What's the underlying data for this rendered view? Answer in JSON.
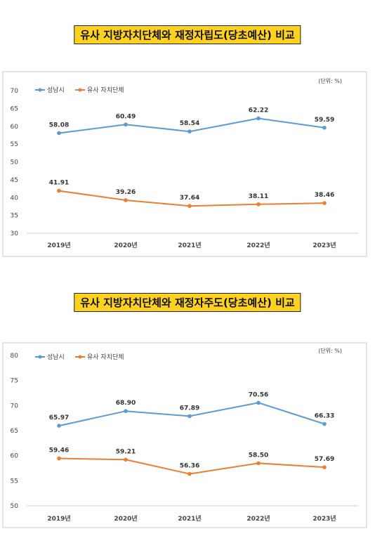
{
  "colors": {
    "seongnam": "#5b9bd5",
    "similar": "#ed7d31",
    "title_bg": "#ffd21f"
  },
  "chart_data": [
    {
      "type": "line",
      "title": "유사 지방자치단체와 재정자립도(당초예산) 비교",
      "unit": "(단위: %)",
      "categories": [
        "2019년",
        "2020년",
        "2021년",
        "2022년",
        "2023년"
      ],
      "ylim": [
        30,
        70
      ],
      "yticks": [
        30,
        35,
        40,
        45,
        50,
        55,
        60,
        65,
        70
      ],
      "legend": "top-left",
      "grid": false,
      "series": [
        {
          "name": "성남시",
          "values": [
            58.08,
            60.49,
            58.54,
            62.22,
            59.59
          ],
          "labels": [
            "58.08",
            "60.49",
            "58.54",
            "62.22",
            "59.59"
          ]
        },
        {
          "name": "유사 자치단체",
          "values": [
            41.91,
            39.26,
            37.64,
            38.11,
            38.46
          ],
          "labels": [
            "41.91",
            "39.26",
            "37.64",
            "38.11",
            "38.46"
          ]
        }
      ]
    },
    {
      "type": "line",
      "title": "유사 지방자치단체와 재정자주도(당초예산) 비교",
      "unit": "(단위: %)",
      "categories": [
        "2019년",
        "2020년",
        "2021년",
        "2022년",
        "2023년"
      ],
      "ylim": [
        50,
        80
      ],
      "yticks": [
        50,
        55,
        60,
        65,
        70,
        75,
        80
      ],
      "legend": "top-left",
      "grid": false,
      "series": [
        {
          "name": "성남시",
          "values": [
            65.97,
            68.9,
            67.89,
            70.56,
            66.33
          ],
          "labels": [
            "65.97",
            "68.90",
            "67.89",
            "70.56",
            "66.33"
          ]
        },
        {
          "name": "유사 자치단체",
          "values": [
            59.46,
            59.21,
            56.36,
            58.5,
            57.69
          ],
          "labels": [
            "59.46",
            "59.21",
            "56.36",
            "58.50",
            "57.69"
          ]
        }
      ]
    }
  ]
}
